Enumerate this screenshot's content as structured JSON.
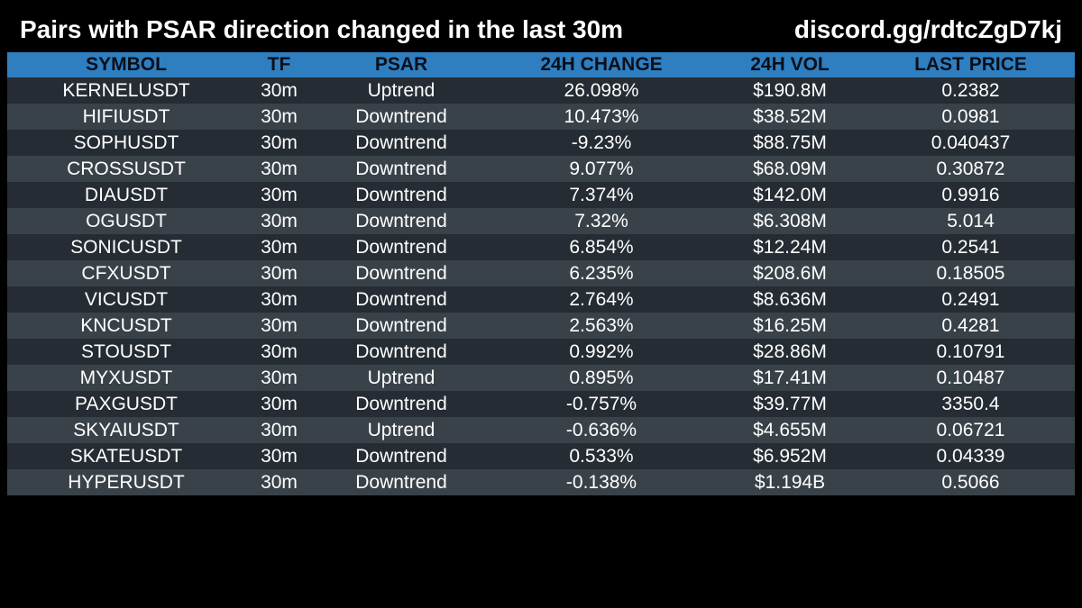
{
  "header": {
    "title": "Pairs with PSAR direction changed in the last 30m",
    "link": "discord.gg/rdtcZgD7kj"
  },
  "colors": {
    "background": "#000000",
    "header_row": "#2f7fc0",
    "row_dark": "#252c33",
    "row_light": "#3a4249",
    "text": "#ffffff"
  },
  "table": {
    "columns": [
      "SYMBOL",
      "TF",
      "PSAR",
      "24H CHANGE",
      "24H VOL",
      "LAST PRICE"
    ],
    "rows": [
      [
        "KERNELUSDT",
        "30m",
        "Uptrend",
        "26.098%",
        "$190.8M",
        "0.2382"
      ],
      [
        "HIFIUSDT",
        "30m",
        "Downtrend",
        "10.473%",
        "$38.52M",
        "0.0981"
      ],
      [
        "SOPHUSDT",
        "30m",
        "Downtrend",
        "-9.23%",
        "$88.75M",
        "0.040437"
      ],
      [
        "CROSSUSDT",
        "30m",
        "Downtrend",
        "9.077%",
        "$68.09M",
        "0.30872"
      ],
      [
        "DIAUSDT",
        "30m",
        "Downtrend",
        "7.374%",
        "$142.0M",
        "0.9916"
      ],
      [
        "OGUSDT",
        "30m",
        "Downtrend",
        "7.32%",
        "$6.308M",
        "5.014"
      ],
      [
        "SONICUSDT",
        "30m",
        "Downtrend",
        "6.854%",
        "$12.24M",
        "0.2541"
      ],
      [
        "CFXUSDT",
        "30m",
        "Downtrend",
        "6.235%",
        "$208.6M",
        "0.18505"
      ],
      [
        "VICUSDT",
        "30m",
        "Downtrend",
        "2.764%",
        "$8.636M",
        "0.2491"
      ],
      [
        "KNCUSDT",
        "30m",
        "Downtrend",
        "2.563%",
        "$16.25M",
        "0.4281"
      ],
      [
        "STOUSDT",
        "30m",
        "Downtrend",
        "0.992%",
        "$28.86M",
        "0.10791"
      ],
      [
        "MYXUSDT",
        "30m",
        "Uptrend",
        "0.895%",
        "$17.41M",
        "0.10487"
      ],
      [
        "PAXGUSDT",
        "30m",
        "Downtrend",
        "-0.757%",
        "$39.77M",
        "3350.4"
      ],
      [
        "SKYAIUSDT",
        "30m",
        "Uptrend",
        "-0.636%",
        "$4.655M",
        "0.06721"
      ],
      [
        "SKATEUSDT",
        "30m",
        "Downtrend",
        "0.533%",
        "$6.952M",
        "0.04339"
      ],
      [
        "HYPERUSDT",
        "30m",
        "Downtrend",
        "-0.138%",
        "$1.194B",
        "0.5066"
      ]
    ]
  }
}
